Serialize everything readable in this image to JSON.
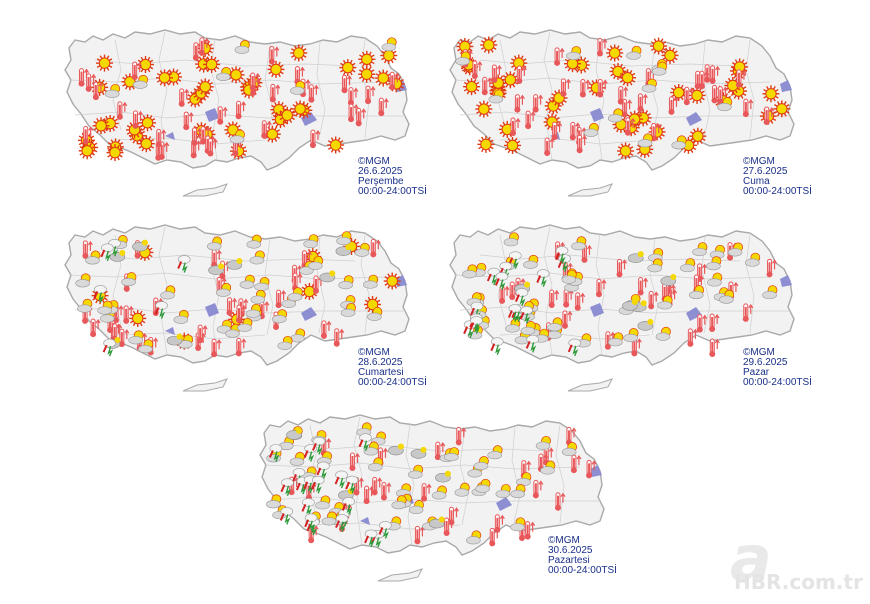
{
  "maps": [
    {
      "source": "©MGM",
      "date": "26.6.2025",
      "day": "Perşembe",
      "period": "00:00-24:00TSİ",
      "icons": {
        "sun": 46,
        "thermometer": 38,
        "partly_cloudy": 7,
        "cloud_sun": 0,
        "thunder": 0
      }
    },
    {
      "source": "©MGM",
      "date": "27.6.2025",
      "day": "Cuma",
      "period": "00:00-24:00TSİ",
      "icons": {
        "sun": 44,
        "thermometer": 36,
        "partly_cloudy": 12,
        "cloud_sun": 0,
        "thunder": 0
      }
    },
    {
      "source": "©MGM",
      "date": "28.6.2025",
      "day": "Cumartesi",
      "period": "00:00-24:00TSİ",
      "icons": {
        "sun": 10,
        "thermometer": 34,
        "partly_cloudy": 40,
        "cloud_sun": 8,
        "thunder": 6
      }
    },
    {
      "source": "©MGM",
      "date": "29.6.2025",
      "day": "Pazar",
      "period": "00:00-24:00TSİ",
      "icons": {
        "sun": 0,
        "thermometer": 30,
        "partly_cloudy": 45,
        "cloud_sun": 6,
        "thunder": 18
      }
    },
    {
      "source": "©MGM",
      "date": "30.6.2025",
      "day": "Pazartesi",
      "period": "00:00-24:00TSİ",
      "icons": {
        "sun": 0,
        "thermometer": 30,
        "partly_cloudy": 42,
        "cloud_sun": 6,
        "thunder": 22
      }
    }
  ],
  "colors": {
    "land": "#f2f2f2",
    "border": "#a9a9a9",
    "lake": "#8e8ed2",
    "sun": "#f5d800",
    "sun_rim": "#e03a14",
    "thermometer": "#e8585a",
    "cloud": "#d9d9d9",
    "thunder_red": "#d42222",
    "thunder_green": "#2e9a3a",
    "caption": "#1a2f8a",
    "watermark": "#e6e6e6"
  },
  "watermark": {
    "letter": "a",
    "text": "HBR.com.tr"
  }
}
